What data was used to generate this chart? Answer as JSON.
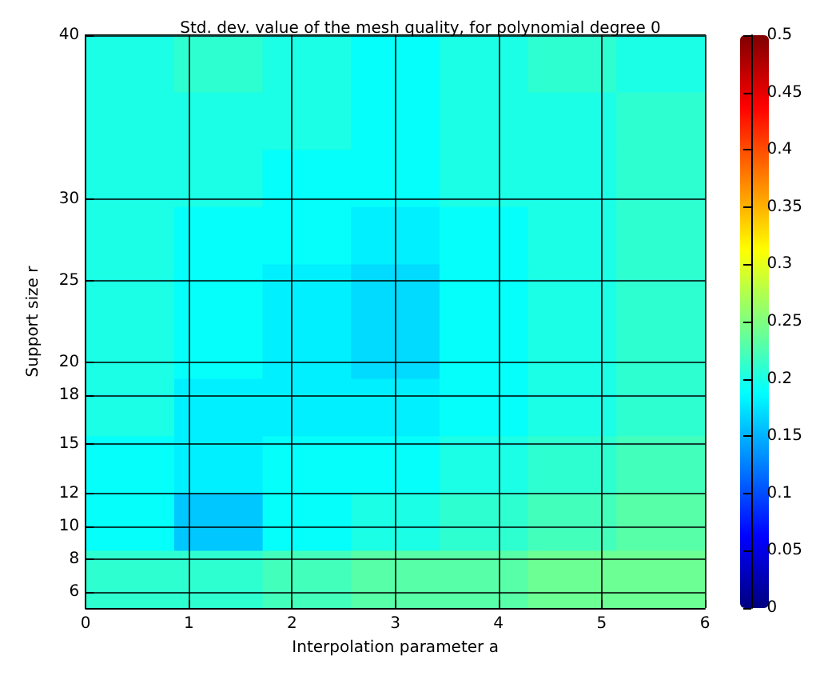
{
  "chart_data": {
    "type": "heatmap",
    "title": "Std. dev. value of the mesh quality, for polynomial degree 0",
    "xlabel": "Interpolation parameter a",
    "ylabel": "Support size r",
    "cells": [
      [
        0.2,
        0.21,
        0.2,
        0.19,
        0.2,
        0.21,
        0.2
      ],
      [
        0.2,
        0.2,
        0.2,
        0.19,
        0.2,
        0.2,
        0.21
      ],
      [
        0.2,
        0.2,
        0.19,
        0.19,
        0.2,
        0.2,
        0.21
      ],
      [
        0.2,
        0.19,
        0.19,
        0.18,
        0.19,
        0.2,
        0.21
      ],
      [
        0.2,
        0.19,
        0.18,
        0.17,
        0.19,
        0.2,
        0.21
      ],
      [
        0.2,
        0.19,
        0.18,
        0.17,
        0.19,
        0.2,
        0.21
      ],
      [
        0.2,
        0.18,
        0.18,
        0.18,
        0.19,
        0.2,
        0.21
      ],
      [
        0.19,
        0.18,
        0.19,
        0.19,
        0.2,
        0.21,
        0.22
      ],
      [
        0.19,
        0.16,
        0.19,
        0.2,
        0.21,
        0.22,
        0.23
      ],
      [
        0.21,
        0.21,
        0.22,
        0.23,
        0.23,
        0.24,
        0.24
      ]
    ],
    "xlim": [
      0,
      6
    ],
    "xticks": [
      0,
      1,
      2,
      3,
      4,
      5,
      6
    ],
    "ylim": [
      5,
      40
    ],
    "yticks": [
      6,
      8,
      10,
      12,
      15,
      18,
      20,
      25,
      30,
      40
    ],
    "clim": [
      0,
      0.5
    ],
    "cticks": [
      0,
      0.05,
      0.1,
      0.15,
      0.2,
      0.25,
      0.3,
      0.35,
      0.4,
      0.45,
      0.5
    ],
    "grid": true
  }
}
